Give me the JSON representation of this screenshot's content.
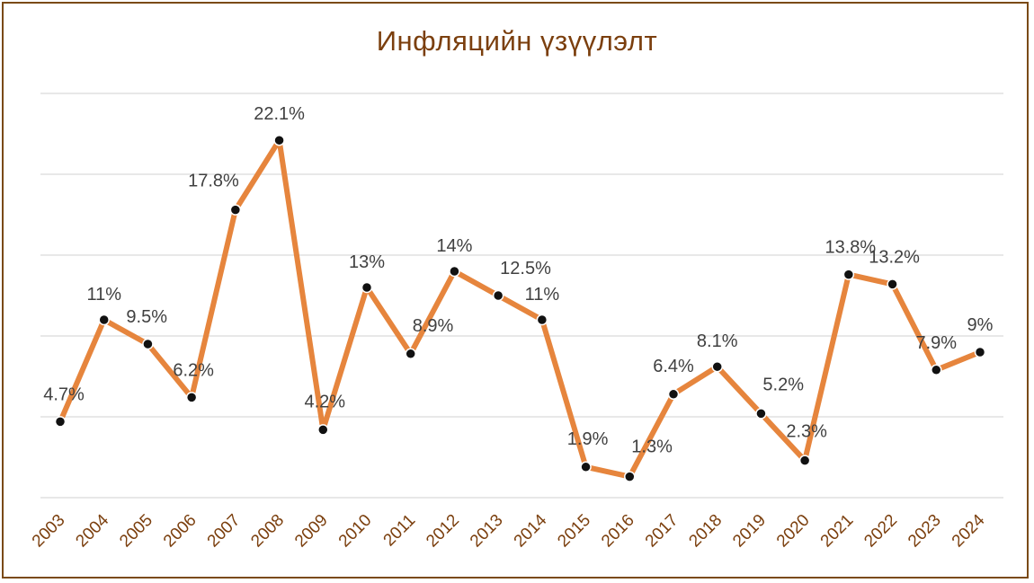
{
  "chart_data": {
    "type": "line",
    "title": "Инфляцийн үзүүлэлт",
    "categories": [
      "2003",
      "2004",
      "2005",
      "2006",
      "2007",
      "2008",
      "2009",
      "2010",
      "2011",
      "2012",
      "2013",
      "2014",
      "2015",
      "2016",
      "2017",
      "2018",
      "2019",
      "2020",
      "2021",
      "2022",
      "2023",
      "2024"
    ],
    "series": [
      {
        "values": [
          4.7,
          11,
          9.5,
          6.2,
          17.8,
          22.1,
          4.2,
          13,
          8.9,
          14,
          12.5,
          11,
          1.9,
          1.3,
          6.4,
          8.1,
          5.2,
          2.3,
          13.8,
          13.2,
          7.9,
          9
        ],
        "labels": [
          "4.7%",
          "11%",
          "9.5%",
          "6.2%",
          "17.8%",
          "22.1%",
          "4.2%",
          "13%",
          "8.9%",
          "14%",
          "12.5%",
          "11%",
          "1.9%",
          "1.3%",
          "6.4%",
          "8.1%",
          "5.2%",
          "2.3%",
          "13.8%",
          "13.2%",
          "7.9%",
          "9%"
        ]
      }
    ],
    "ylim": [
      0,
      25
    ],
    "gridlines": [
      0,
      5,
      10,
      15,
      20,
      25
    ],
    "y_ticks_shown": false,
    "grid": true,
    "legend": "none",
    "colors": {
      "line": "#e6853d",
      "marker": "#111111",
      "title": "#7b3f0e",
      "tick": "#7b3f0e",
      "border": "#7a4a17"
    }
  }
}
